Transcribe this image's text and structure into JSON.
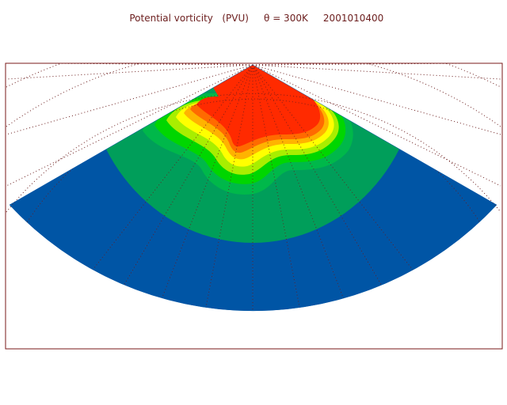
{
  "header": {
    "field": "Potential vorticity",
    "units": "(PVU)",
    "theta_label": "θ = 300K",
    "datetime": "2001010400"
  },
  "colors": {
    "frame": "#7a1a1a",
    "graticule": "#6b1d1d",
    "pv_low": "#0055a5",
    "pv_mid1": "#009e5a",
    "pv_mid2": "#00b84a",
    "pv_mid3": "#00d600",
    "pv_high1": "#a8ee00",
    "pv_high2": "#ffff00",
    "pv_high3": "#ffb300",
    "pv_high4": "#ff6a00",
    "pv_max": "#ff2a00"
  }
}
